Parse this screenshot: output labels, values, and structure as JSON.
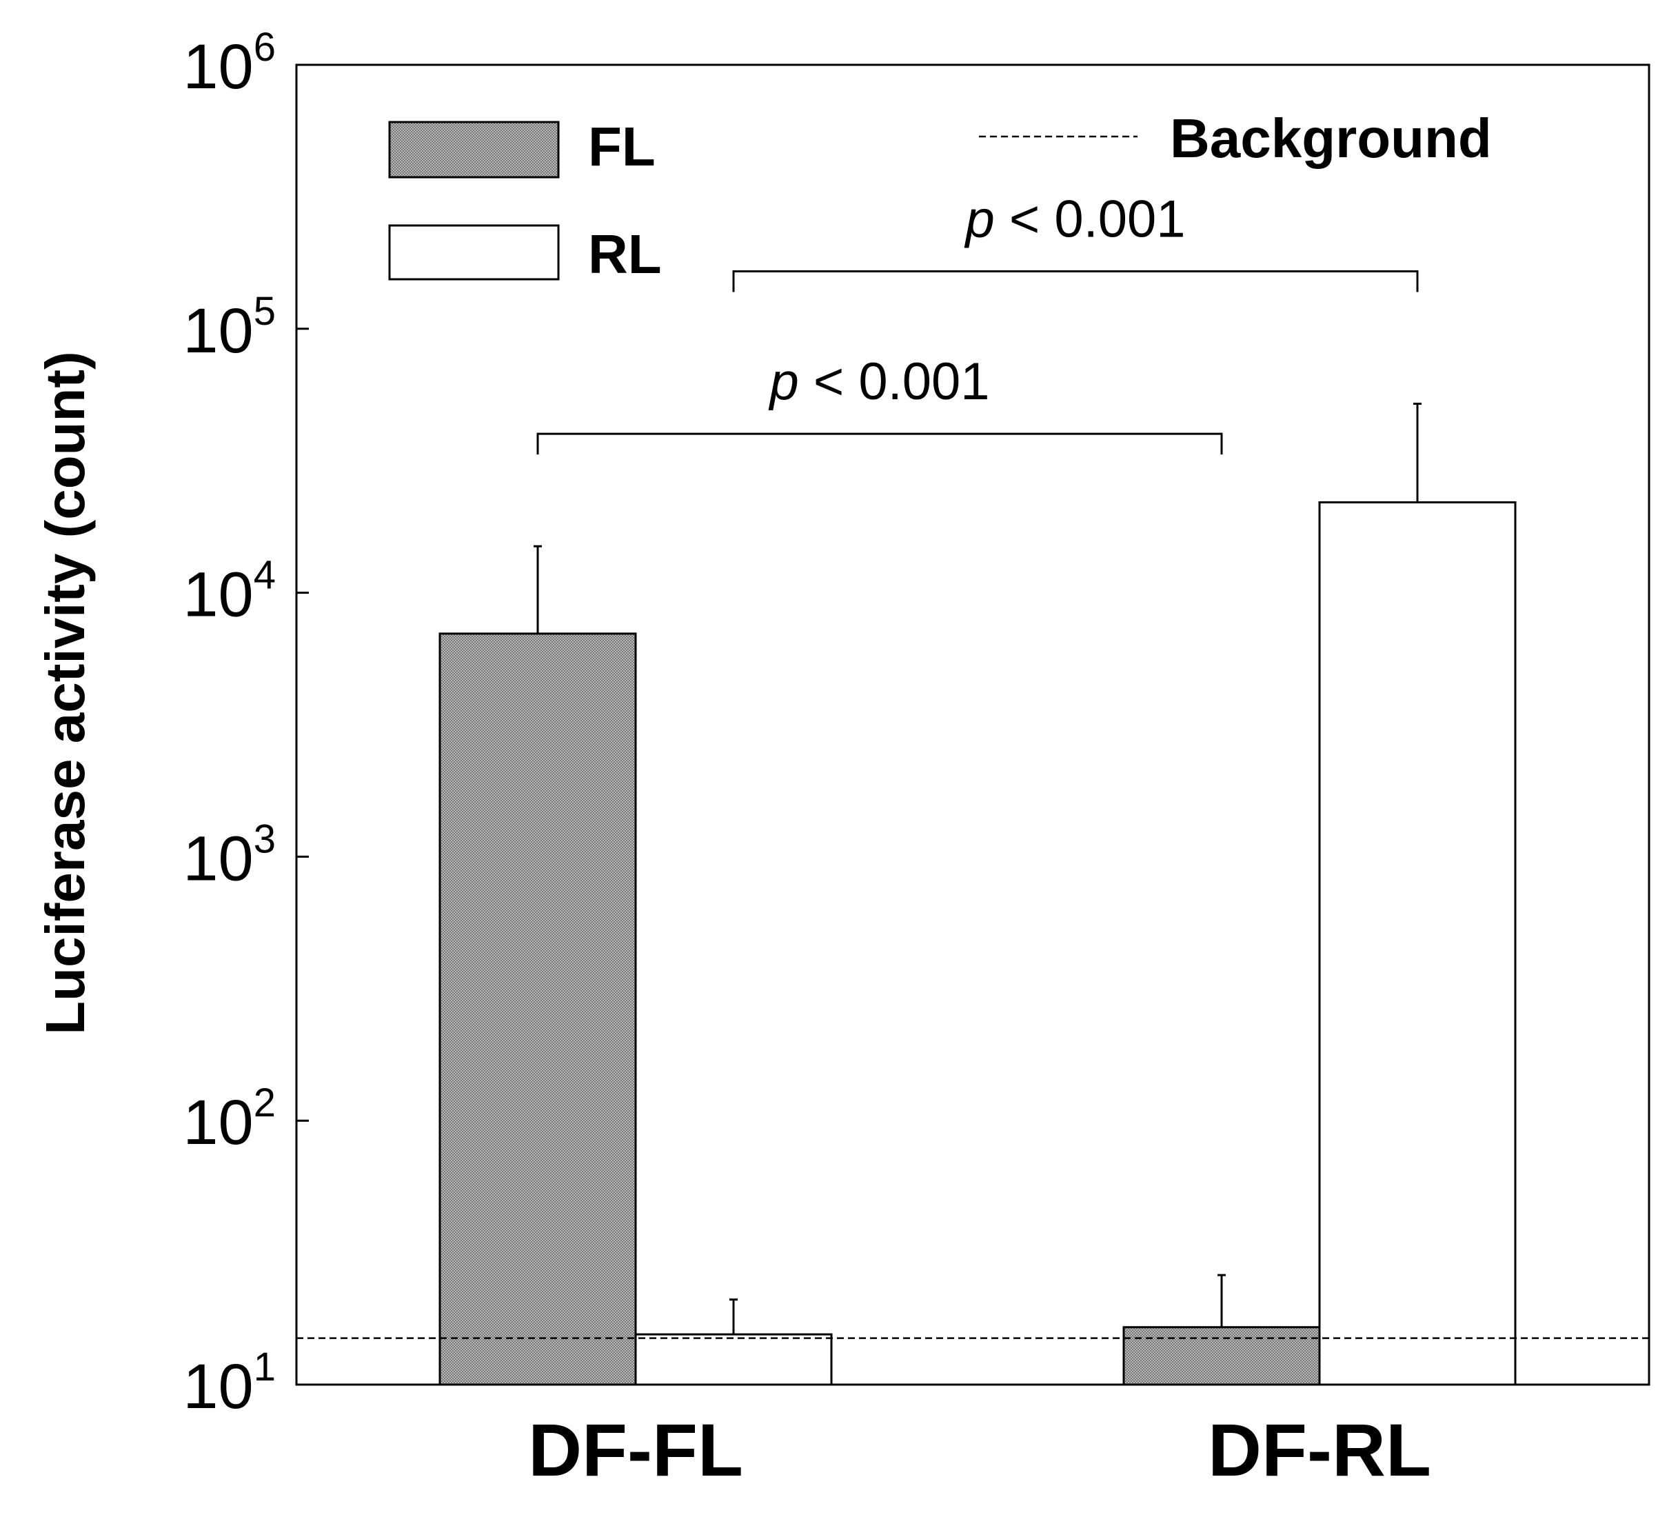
{
  "chart_data": {
    "type": "bar",
    "title": "",
    "xlabel": "",
    "ylabel": "Luciferase activity (count)",
    "yscale": "log",
    "ylim": [
      10,
      1000000
    ],
    "yticks": [
      {
        "value": 10,
        "base": "10",
        "exp": "1"
      },
      {
        "value": 100,
        "base": "10",
        "exp": "2"
      },
      {
        "value": 1000,
        "base": "10",
        "exp": "3"
      },
      {
        "value": 10000,
        "base": "10",
        "exp": "4"
      },
      {
        "value": 100000,
        "base": "10",
        "exp": "5"
      },
      {
        "value": 1000000,
        "base": "10",
        "exp": "6"
      }
    ],
    "categories": [
      "DF-FL",
      "DF-RL"
    ],
    "series": [
      {
        "name": "FL",
        "fill": "pattern",
        "values": [
          7000,
          16.5
        ],
        "error_upper": [
          15000,
          26
        ]
      },
      {
        "name": "RL",
        "fill": "#ffffff",
        "values": [
          15.5,
          22000
        ],
        "error_upper": [
          21,
          52000
        ]
      }
    ],
    "background": {
      "label": "Background",
      "value": 15
    },
    "legend_placement": "top",
    "grid": false,
    "annotations": [
      {
        "italic": "p",
        "text": " < 0.001",
        "from": {
          "category": 0,
          "series": 0
        },
        "to": {
          "category": 1,
          "series": 0
        },
        "y": 40000
      },
      {
        "italic": "p",
        "text": " < 0.001",
        "from": {
          "category": 0,
          "series": 1
        },
        "to": {
          "category": 1,
          "series": 1
        },
        "y": 165000
      }
    ]
  },
  "colors": {
    "axis": "#000000",
    "fl_bar_fill": "#8c8c8c",
    "rl_bar_fill": "#ffffff"
  }
}
